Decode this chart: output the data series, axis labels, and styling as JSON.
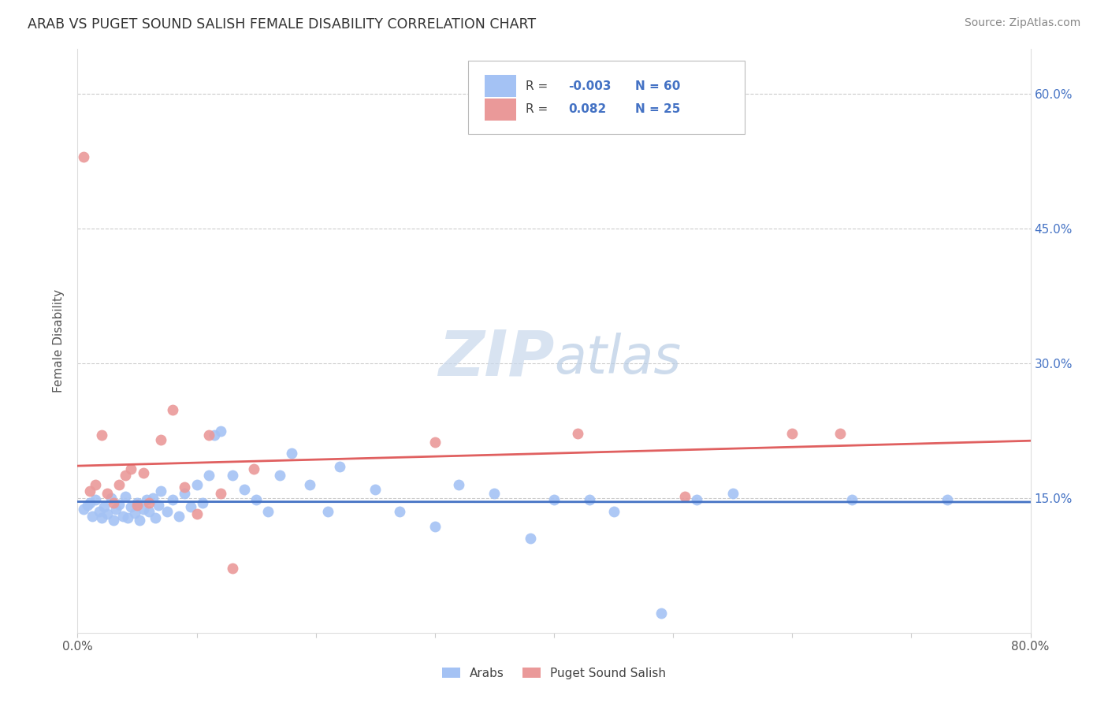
{
  "title": "ARAB VS PUGET SOUND SALISH FEMALE DISABILITY CORRELATION CHART",
  "source": "Source: ZipAtlas.com",
  "ylabel": "Female Disability",
  "xlim": [
    0.0,
    0.8
  ],
  "ylim": [
    0.0,
    0.65
  ],
  "ytick_positions": [
    0.15,
    0.3,
    0.45,
    0.6
  ],
  "ytick_labels": [
    "15.0%",
    "30.0%",
    "45.0%",
    "60.0%"
  ],
  "grid_color": "#cccccc",
  "background_color": "#ffffff",
  "legend_r_blue": "-0.003",
  "legend_n_blue": "60",
  "legend_r_pink": "0.082",
  "legend_n_pink": "25",
  "blue_color": "#a4c2f4",
  "pink_color": "#ea9999",
  "blue_line_color": "#4472c4",
  "pink_line_color": "#e06060",
  "text_color_blue": "#4472c4",
  "text_color_dark": "#444444",
  "watermark_color": "#dce8f8",
  "title_color": "#333333",
  "source_color": "#888888",
  "blue_scatter_x": [
    0.005,
    0.008,
    0.01,
    0.012,
    0.015,
    0.018,
    0.02,
    0.022,
    0.025,
    0.028,
    0.03,
    0.032,
    0.035,
    0.038,
    0.04,
    0.042,
    0.045,
    0.048,
    0.05,
    0.052,
    0.055,
    0.058,
    0.06,
    0.063,
    0.065,
    0.068,
    0.07,
    0.075,
    0.08,
    0.085,
    0.09,
    0.095,
    0.1,
    0.105,
    0.11,
    0.115,
    0.12,
    0.13,
    0.14,
    0.15,
    0.16,
    0.17,
    0.18,
    0.195,
    0.21,
    0.22,
    0.25,
    0.27,
    0.3,
    0.32,
    0.35,
    0.38,
    0.4,
    0.43,
    0.45,
    0.49,
    0.52,
    0.55,
    0.65,
    0.73
  ],
  "blue_scatter_y": [
    0.138,
    0.142,
    0.145,
    0.13,
    0.148,
    0.135,
    0.128,
    0.14,
    0.132,
    0.15,
    0.125,
    0.138,
    0.143,
    0.13,
    0.152,
    0.128,
    0.14,
    0.133,
    0.145,
    0.125,
    0.138,
    0.148,
    0.135,
    0.15,
    0.128,
    0.142,
    0.158,
    0.135,
    0.148,
    0.13,
    0.155,
    0.14,
    0.165,
    0.145,
    0.175,
    0.22,
    0.225,
    0.175,
    0.16,
    0.148,
    0.135,
    0.175,
    0.2,
    0.165,
    0.135,
    0.185,
    0.16,
    0.135,
    0.118,
    0.165,
    0.155,
    0.105,
    0.148,
    0.148,
    0.135,
    0.022,
    0.148,
    0.155,
    0.148,
    0.148
  ],
  "pink_scatter_x": [
    0.005,
    0.01,
    0.015,
    0.02,
    0.025,
    0.03,
    0.035,
    0.04,
    0.045,
    0.05,
    0.055,
    0.06,
    0.07,
    0.08,
    0.09,
    0.1,
    0.11,
    0.12,
    0.13,
    0.148,
    0.3,
    0.42,
    0.51,
    0.6,
    0.64
  ],
  "pink_scatter_y": [
    0.53,
    0.158,
    0.165,
    0.22,
    0.155,
    0.145,
    0.165,
    0.175,
    0.182,
    0.142,
    0.178,
    0.145,
    0.215,
    0.248,
    0.162,
    0.132,
    0.22,
    0.155,
    0.072,
    0.182,
    0.212,
    0.222,
    0.152,
    0.222,
    0.222
  ]
}
